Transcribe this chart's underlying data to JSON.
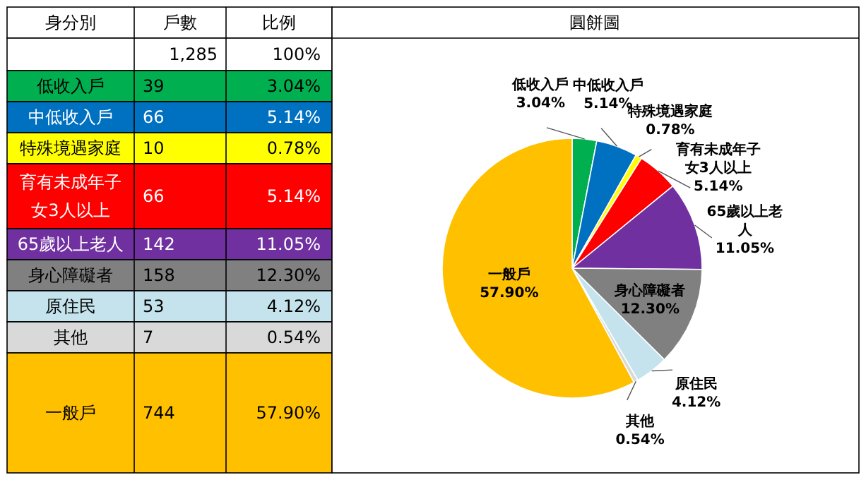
{
  "chart_data": {
    "type": "pie",
    "title": "圓餅圖",
    "categories": [
      "低收入戶",
      "中低收入戶",
      "特殊境遇家庭",
      "育有未成年子女3人以上",
      "65歲以上老人",
      "身心障礙者",
      "原住民",
      "其他",
      "一般戶"
    ],
    "values": [
      3.04,
      5.14,
      0.78,
      5.14,
      11.05,
      12.3,
      4.12,
      0.54,
      57.9
    ],
    "value_labels": [
      "3.04%",
      "5.14%",
      "0.78%",
      "5.14%",
      "11.05%",
      "12.30%",
      "4.12%",
      "0.54%",
      "57.90%"
    ],
    "colors": [
      "#00b050",
      "#0070c0",
      "#ffff00",
      "#ff0000",
      "#7030a0",
      "#808080",
      "#c5e3ec",
      "#d9d9d9",
      "#ffc000"
    ],
    "data_labels": true,
    "annotations": [
      "身分別",
      "戶數",
      "比例",
      "1,285",
      "100%",
      "39",
      "66",
      "10",
      "66",
      "142",
      "158",
      "53",
      "7",
      "744"
    ]
  }
}
